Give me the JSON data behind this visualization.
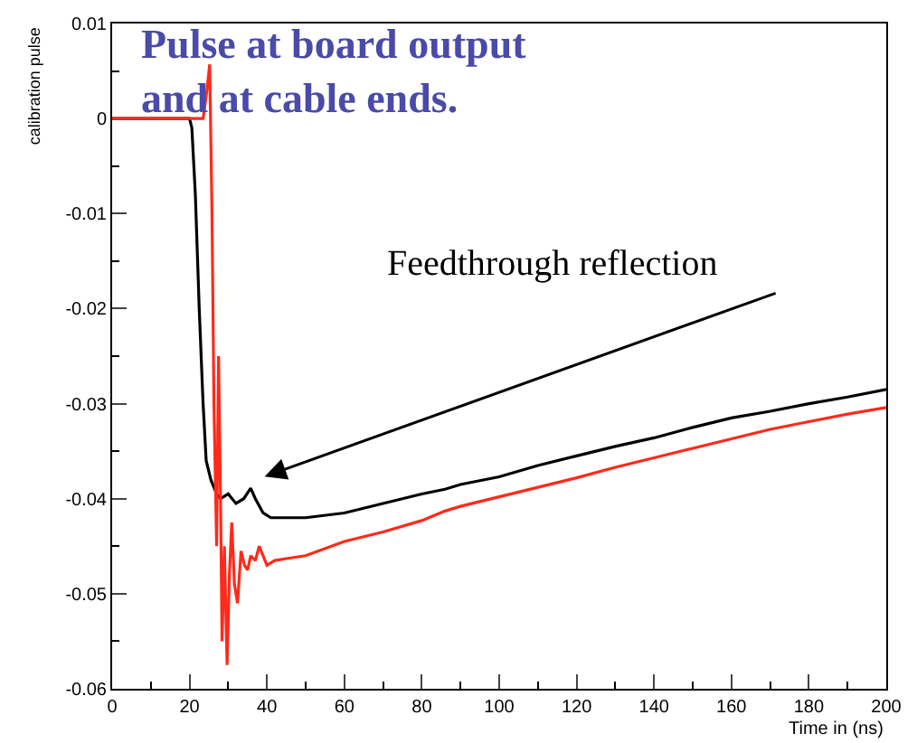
{
  "chart_data": {
    "type": "line",
    "title": "Pulse at board output\nand at cable ends.",
    "xlabel": "Time in (ns)",
    "ylabel": "calibration pulse",
    "xlim": [
      0,
      200
    ],
    "xticks": [
      0,
      20,
      40,
      60,
      80,
      100,
      120,
      140,
      160,
      180,
      200
    ],
    "ylim": [
      -0.06,
      0.01
    ],
    "yticks": [
      -0.06,
      -0.05,
      -0.04,
      -0.03,
      -0.02,
      -0.01,
      0,
      0.01
    ],
    "marker": "none",
    "line_style": "solid",
    "annotations": [
      "Feedthrough reflection"
    ],
    "series": [
      {
        "color": "#000000",
        "x": [
          0,
          5,
          10,
          15,
          20,
          20.6,
          21.5,
          22.5,
          23.5,
          24.3,
          25.5,
          27,
          28,
          30,
          32,
          34,
          35.8,
          37,
          39,
          41,
          45,
          50,
          60,
          70,
          80,
          86,
          90,
          100,
          110,
          120,
          130,
          140,
          150,
          160,
          170,
          180,
          190,
          200
        ],
        "values": [
          0,
          0,
          0,
          0,
          0,
          -0.001,
          -0.008,
          -0.02,
          -0.03,
          -0.036,
          -0.038,
          -0.0395,
          -0.04,
          -0.0395,
          -0.0405,
          -0.04,
          -0.0389,
          -0.04,
          -0.0415,
          -0.042,
          -0.042,
          -0.042,
          -0.0415,
          -0.0405,
          -0.0395,
          -0.039,
          -0.0385,
          -0.0377,
          -0.0365,
          -0.0355,
          -0.0345,
          -0.0336,
          -0.0325,
          -0.0315,
          -0.0308,
          -0.03,
          -0.0293,
          -0.0285
        ]
      },
      {
        "color": "#ff2a1a",
        "x": [
          0,
          5,
          10,
          15,
          20,
          23.5,
          24.5,
          25.2,
          25.8,
          26.3,
          27,
          27.5,
          28,
          28.4,
          29,
          29.7,
          30.3,
          30.9,
          31.6,
          32.4,
          33.3,
          34.2,
          35,
          35.8,
          37,
          38,
          40,
          42,
          45,
          50,
          60,
          70,
          80,
          86,
          90,
          100,
          110,
          120,
          130,
          140,
          150,
          160,
          170,
          180,
          190,
          200
        ],
        "values": [
          0,
          0,
          0,
          0,
          0,
          0,
          0.003,
          0.0057,
          -0.01,
          -0.03,
          -0.045,
          -0.025,
          -0.04,
          -0.055,
          -0.045,
          -0.0575,
          -0.048,
          -0.0425,
          -0.049,
          -0.051,
          -0.0455,
          -0.047,
          -0.0475,
          -0.046,
          -0.0465,
          -0.045,
          -0.047,
          -0.0465,
          -0.0463,
          -0.046,
          -0.0445,
          -0.0435,
          -0.0423,
          -0.0413,
          -0.0408,
          -0.0398,
          -0.0388,
          -0.0378,
          -0.0367,
          -0.0357,
          -0.0347,
          -0.0337,
          -0.0327,
          -0.0319,
          -0.0311,
          -0.0304
        ]
      }
    ]
  }
}
